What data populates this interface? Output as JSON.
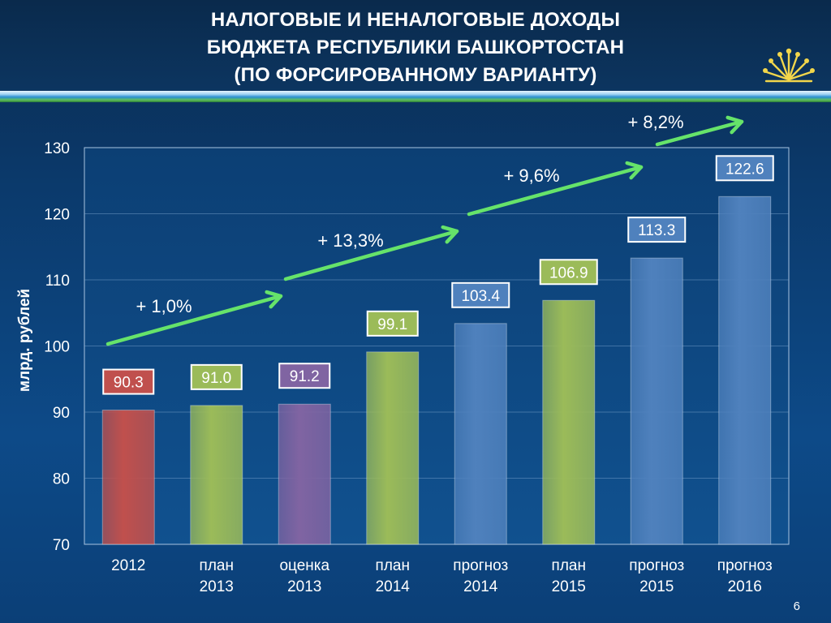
{
  "slide": {
    "title_lines": [
      "НАЛОГОВЫЕ И НЕНАЛОГОВЫЕ ДОХОДЫ",
      "БЮДЖЕТА РЕСПУБЛИКИ БАШКОРТОСТАН",
      "(ПО ФОРСИРОВАННОМУ ВАРИАНТУ)"
    ],
    "page_number": "6",
    "logo_icon": "kurai-flower-emblem-icon"
  },
  "chart_data": {
    "type": "bar",
    "ylabel": "млрд. рублей",
    "ylim": [
      70,
      130
    ],
    "yticks": [
      70,
      80,
      90,
      100,
      110,
      120,
      130
    ],
    "grid": true,
    "categories": [
      [
        "2012"
      ],
      [
        "план",
        "2013"
      ],
      [
        "оценка",
        "2013"
      ],
      [
        "план",
        "2014"
      ],
      [
        "прогноз",
        "2014"
      ],
      [
        "план",
        "2015"
      ],
      [
        "прогноз",
        "2015"
      ],
      [
        "прогноз",
        "2016"
      ]
    ],
    "values": [
      90.3,
      91.0,
      91.2,
      99.1,
      103.4,
      106.9,
      113.3,
      122.6
    ],
    "value_labels": [
      "90.3",
      "91.0",
      "91.2",
      "99.1",
      "103.4",
      "106.9",
      "113.3",
      "122.6"
    ],
    "bar_colors": [
      "#c0504d",
      "#9bbb59",
      "#8064a2",
      "#9bbb59",
      "#4f81bd",
      "#9bbb59",
      "#4f81bd",
      "#4f81bd"
    ],
    "growth_annotations": [
      {
        "label": "+ 1,0%"
      },
      {
        "label": "+ 13,3%"
      },
      {
        "label": "+ 9,6%"
      },
      {
        "label": "+ 8,2%"
      }
    ],
    "colors": {
      "arrow": "#66e36a",
      "plot_bg": "#0e4a86",
      "grid": "#7fa8d0",
      "text": "#ffffff"
    }
  }
}
